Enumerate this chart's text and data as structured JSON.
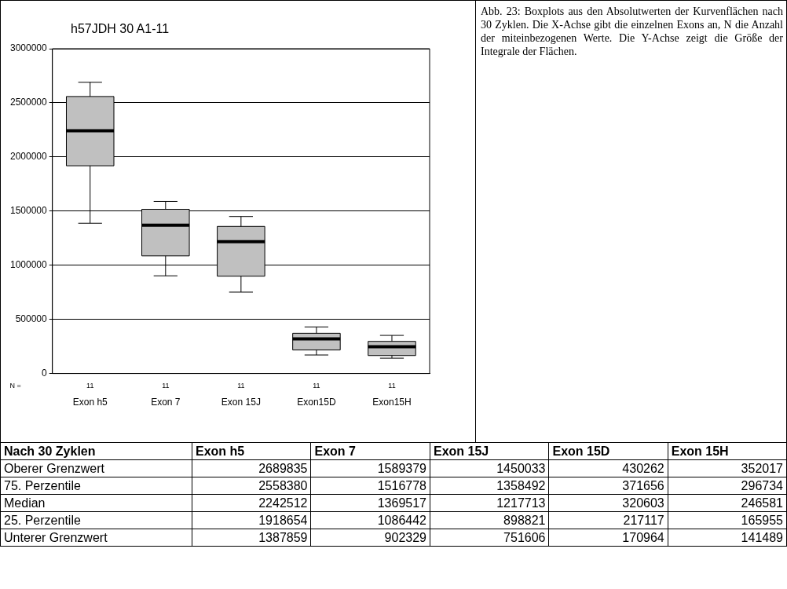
{
  "chart_data": [
    {
      "type": "box",
      "title": "h57JDH 30 A1-11",
      "categories": [
        "Exon h5",
        "Exon 7",
        "Exon 15J",
        "Exon15D",
        "Exon15H"
      ],
      "boxes": [
        {
          "low": 1387859,
          "q1": 1918654,
          "median": 2242512,
          "q3": 2558380,
          "high": 2689835
        },
        {
          "low": 902329,
          "q1": 1086442,
          "median": 1369517,
          "q3": 1516778,
          "high": 1589379
        },
        {
          "low": 751606,
          "q1": 898821,
          "median": 1217713,
          "q3": 1358492,
          "high": 1450033
        },
        {
          "low": 170964,
          "q1": 217117,
          "median": 320603,
          "q3": 371656,
          "high": 430262
        },
        {
          "low": 141489,
          "q1": 165955,
          "median": 246581,
          "q3": 296734,
          "high": 352017
        }
      ],
      "color": "#c0c0c0",
      "ylim": [
        0,
        3000000
      ],
      "yticks": [
        0,
        500000,
        1000000,
        1500000,
        2000000,
        2500000,
        3000000
      ],
      "grid": "y",
      "annotations": [
        "Abb. 23: Boxplots aus den Absolutwerten der Kurvenflächen nach 30 Zyklen. Die X-Achse gibt die einzelnen Exons an, N die Anzahl der miteinbezogenen Werte. Die Y-Achse zeigt die Größe der Integrale der Flächen.",
        "N =",
        "11",
        "11",
        "11",
        "11",
        "11"
      ]
    },
    {
      "type": "other",
      "annotations": [
        "Nach 30 Zyklen",
        "Exon h5",
        "Exon 7",
        "Exon 15J",
        "Exon 15D",
        "Exon 15H",
        "Oberer Grenzwert",
        "2689835",
        "1589379",
        "1450033",
        "430262",
        "352017",
        "75. Perzentile",
        "2558380",
        "1516778",
        "1358492",
        "371656",
        "296734",
        "Median",
        "2242512",
        "1369517",
        "1217713",
        "320603",
        "246581",
        "25. Perzentile",
        "1918654",
        "1086442",
        "898821",
        "217117",
        "165955",
        "Unterer Grenzwert",
        "1387859",
        "902329",
        "751606",
        "170964",
        "141489"
      ]
    }
  ]
}
